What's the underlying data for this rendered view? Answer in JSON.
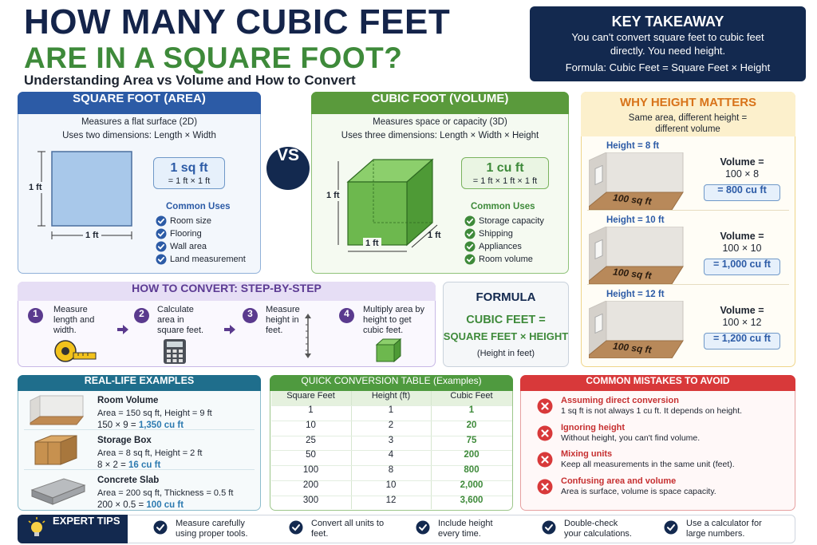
{
  "header": {
    "title_line1": "HOW MANY CUBIC FEET",
    "title_line2": "ARE IN A SQUARE FOOT?",
    "subtitle": "Understanding Area vs Volume and How to Convert"
  },
  "key_takeaway": {
    "title": "KEY TAKEAWAY",
    "text": "You can't convert square feet to cubic feet directly. You need height.",
    "formula": "Formula: Cubic Feet = Square Feet × Height"
  },
  "square_foot": {
    "title": "SQUARE FOOT (AREA)",
    "desc1": "Measures a flat surface (2D)",
    "desc2": "Uses two dimensions: Length × Width",
    "side_label": "1 ft",
    "bottom_label": "1 ft",
    "unit": "1 sq ft",
    "unit_formula": "= 1 ft × 1 ft",
    "uses_title": "Common Uses",
    "uses": [
      "Room size",
      "Flooring",
      "Wall area",
      "Land measurement"
    ]
  },
  "vs": "VS",
  "cubic_foot": {
    "title": "CUBIC FOOT (VOLUME)",
    "desc1": "Measures space or capacity (3D)",
    "desc2": "Uses three dimensions: Length × Width × Height",
    "height_label": "1 ft",
    "length_label": "1 ft",
    "width_label": "1 ft",
    "unit": "1 cu ft",
    "unit_formula": "= 1 ft × 1 ft × 1 ft",
    "uses_title": "Common Uses",
    "uses": [
      "Storage capacity",
      "Shipping",
      "Appliances",
      "Room volume"
    ]
  },
  "why_height": {
    "title": "WHY HEIGHT MATTERS",
    "subtitle": "Same area, different height = different volume",
    "rooms": [
      {
        "height": "Height = 8 ft",
        "floor": "100 sq ft",
        "volume_label": "Volume =",
        "calc": "100 × 8",
        "result": "= 800 cu ft"
      },
      {
        "height": "Height = 10 ft",
        "floor": "100 sq ft",
        "volume_label": "Volume =",
        "calc": "100 × 10",
        "result": "= 1,000 cu ft"
      },
      {
        "height": "Height = 12 ft",
        "floor": "100 sq ft",
        "volume_label": "Volume =",
        "calc": "100 × 12",
        "result": "= 1,200 cu ft"
      }
    ]
  },
  "steps": {
    "title": "HOW TO CONVERT: STEP-BY-STEP",
    "items": [
      {
        "number": "1",
        "text": "Measure length and width."
      },
      {
        "number": "2",
        "text": "Calculate area in square feet."
      },
      {
        "number": "3",
        "text": "Measure height in feet."
      },
      {
        "number": "4",
        "text": "Multiply area by height to get cubic feet."
      }
    ]
  },
  "formula": {
    "title": "FORMULA",
    "line1": "CUBIC FEET =",
    "line2": "SQUARE FEET × HEIGHT",
    "note": "(Height in feet)"
  },
  "examples": {
    "title": "REAL-LIFE EXAMPLES",
    "items": [
      {
        "name": "Room Volume",
        "line1": "Area = 150 sq ft, Height = 9 ft",
        "calc": "150 × 9 =",
        "result": "1,350 cu ft"
      },
      {
        "name": "Storage Box",
        "line1": "Area = 8 sq ft, Height = 2 ft",
        "calc": "8 × 2 =",
        "result": "16 cu ft"
      },
      {
        "name": "Concrete Slab",
        "line1": "Area = 200 sq ft, Thickness = 0.5 ft",
        "calc": "200 × 0.5 =",
        "result": "100 cu ft"
      }
    ]
  },
  "table": {
    "title": "QUICK CONVERSION TABLE (Examples)",
    "headers": [
      "Square Feet",
      "Height (ft)",
      "Cubic Feet"
    ],
    "rows": [
      [
        "1",
        "1",
        "1"
      ],
      [
        "10",
        "2",
        "20"
      ],
      [
        "25",
        "3",
        "75"
      ],
      [
        "50",
        "4",
        "200"
      ],
      [
        "100",
        "8",
        "800"
      ],
      [
        "200",
        "10",
        "2,000"
      ],
      [
        "300",
        "12",
        "3,600"
      ]
    ]
  },
  "mistakes": {
    "title": "COMMON MISTAKES TO AVOID",
    "items": [
      {
        "title": "Assuming direct conversion",
        "text": "1 sq ft is not always 1 cu ft. It depends on height."
      },
      {
        "title": "Ignoring height",
        "text": "Without height, you can't find volume."
      },
      {
        "title": "Mixing units",
        "text": "Keep all measurements in the same unit (feet)."
      },
      {
        "title": "Confusing area and volume",
        "text": "Area is surface, volume is space capacity."
      }
    ]
  },
  "tips": {
    "title": "EXPERT TIPS",
    "items": [
      "Measure carefully using proper tools.",
      "Convert all units to feet.",
      "Include height every time.",
      "Double-check your calculations.",
      "Use a calculator for large numbers."
    ]
  }
}
